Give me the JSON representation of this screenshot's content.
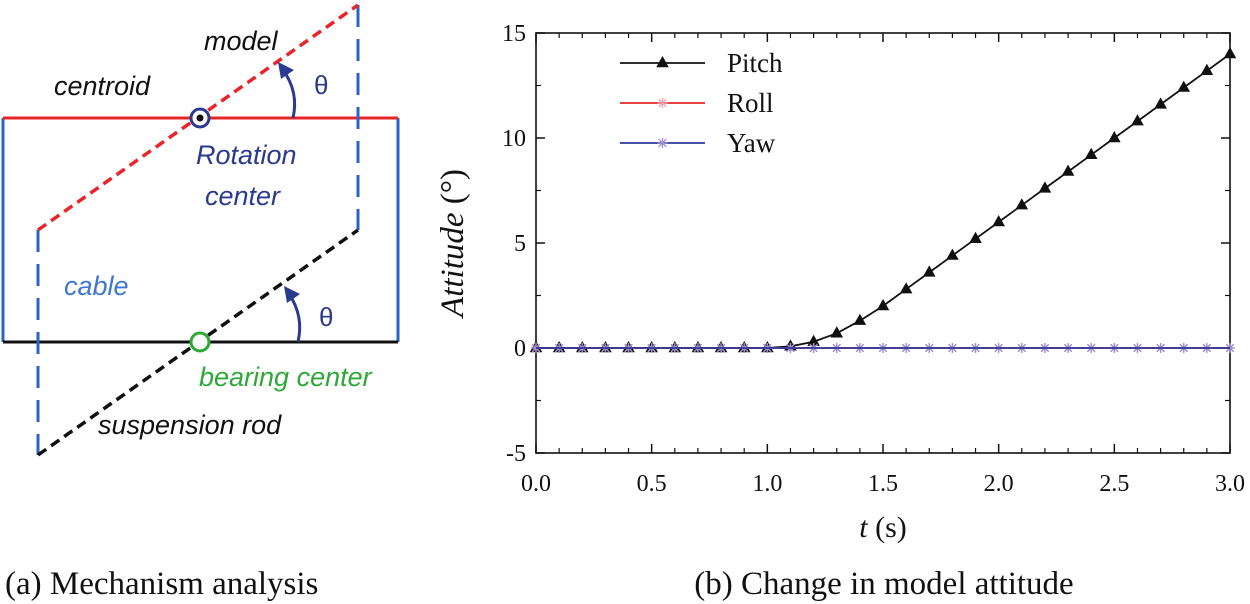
{
  "panel_a": {
    "caption": "(a) Mechanism analysis",
    "labels": {
      "model": "model",
      "centroid": "centroid",
      "theta_top": "θ",
      "rotation_center_line1": "Rotation",
      "rotation_center_line2": "center",
      "cable": "cable",
      "theta_bottom": "θ",
      "bearing_center": "bearing center",
      "suspension_rod": "suspension rod"
    },
    "colors": {
      "model_line": "#e8262a",
      "frame": "#2b63c9",
      "rod": "#111111",
      "rotation_center": "#2b3a8f",
      "bearing_center": "#2ea836",
      "cable_text": "#3f78d1"
    }
  },
  "panel_b": {
    "caption": "(b) Change in model attitude"
  },
  "chart_data": {
    "type": "line",
    "title": "",
    "xlabel_var": "t",
    "xlabel_unit": "(s)",
    "ylabel_var": "Attitude",
    "ylabel_unit": "(°)",
    "xlim": [
      0,
      3
    ],
    "ylim": [
      -5,
      15
    ],
    "xticks": [
      0.0,
      0.5,
      1.0,
      1.5,
      2.0,
      2.5,
      3.0
    ],
    "xtick_labels": [
      "0.0",
      "0.5",
      "1.0",
      "1.5",
      "2.0",
      "2.5",
      "3.0"
    ],
    "yticks": [
      -5,
      0,
      5,
      10,
      15
    ],
    "ytick_labels": [
      "-5",
      "0",
      "5",
      "10",
      "15"
    ],
    "legend_position": "top-left",
    "series": [
      {
        "name": "Pitch",
        "color": "#111111",
        "marker": "triangle",
        "x": [
          0.0,
          0.1,
          0.2,
          0.3,
          0.4,
          0.5,
          0.6,
          0.7,
          0.8,
          0.9,
          1.0,
          1.1,
          1.2,
          1.3,
          1.4,
          1.5,
          1.6,
          1.7,
          1.8,
          1.9,
          2.0,
          2.1,
          2.2,
          2.3,
          2.4,
          2.5,
          2.6,
          2.7,
          2.8,
          2.9,
          3.0
        ],
        "y": [
          0,
          0,
          0,
          0,
          0,
          0,
          0,
          0,
          0,
          0,
          0,
          0.08,
          0.3,
          0.7,
          1.3,
          2.0,
          2.8,
          3.6,
          4.4,
          5.2,
          6.0,
          6.8,
          7.6,
          8.4,
          9.2,
          10.0,
          10.8,
          11.6,
          12.4,
          13.2,
          14.0
        ]
      },
      {
        "name": "Roll",
        "color": "#e8262a",
        "marker": "star",
        "x": [
          0.0,
          0.1,
          0.2,
          0.3,
          0.4,
          0.5,
          0.6,
          0.7,
          0.8,
          0.9,
          1.0,
          1.1,
          1.2,
          1.3,
          1.4,
          1.5,
          1.6,
          1.7,
          1.8,
          1.9,
          2.0,
          2.1,
          2.2,
          2.3,
          2.4,
          2.5,
          2.6,
          2.7,
          2.8,
          2.9,
          3.0
        ],
        "y": [
          0,
          0,
          0,
          0,
          0,
          0,
          0,
          0,
          0,
          0,
          0,
          0,
          0,
          0,
          0,
          0,
          0,
          0,
          0,
          0,
          0,
          0,
          0,
          0,
          0,
          0,
          0,
          0,
          0,
          0,
          0
        ]
      },
      {
        "name": "Yaw",
        "color": "#2b3a9b",
        "marker": "star",
        "x": [
          0.0,
          0.1,
          0.2,
          0.3,
          0.4,
          0.5,
          0.6,
          0.7,
          0.8,
          0.9,
          1.0,
          1.1,
          1.2,
          1.3,
          1.4,
          1.5,
          1.6,
          1.7,
          1.8,
          1.9,
          2.0,
          2.1,
          2.2,
          2.3,
          2.4,
          2.5,
          2.6,
          2.7,
          2.8,
          2.9,
          3.0
        ],
        "y": [
          0,
          0,
          0,
          0,
          0,
          0,
          0,
          0,
          0,
          0,
          0,
          0,
          0,
          0,
          0,
          0,
          0,
          0,
          0,
          0,
          0,
          0,
          0,
          0,
          0,
          0,
          0,
          0,
          0,
          0,
          0
        ]
      }
    ]
  }
}
